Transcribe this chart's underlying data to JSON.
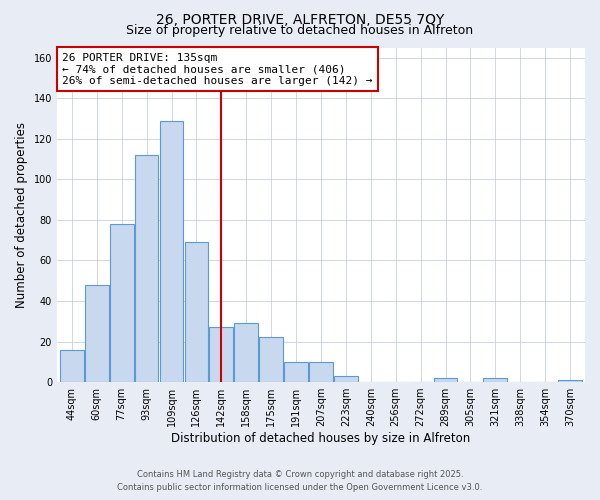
{
  "title": "26, PORTER DRIVE, ALFRETON, DE55 7QY",
  "subtitle": "Size of property relative to detached houses in Alfreton",
  "xlabel": "Distribution of detached houses by size in Alfreton",
  "ylabel": "Number of detached properties",
  "bar_labels": [
    "44sqm",
    "60sqm",
    "77sqm",
    "93sqm",
    "109sqm",
    "126sqm",
    "142sqm",
    "158sqm",
    "175sqm",
    "191sqm",
    "207sqm",
    "223sqm",
    "240sqm",
    "256sqm",
    "272sqm",
    "289sqm",
    "305sqm",
    "321sqm",
    "338sqm",
    "354sqm",
    "370sqm"
  ],
  "bar_values": [
    16,
    48,
    78,
    112,
    129,
    69,
    27,
    29,
    22,
    10,
    10,
    3,
    0,
    0,
    0,
    2,
    0,
    2,
    0,
    0,
    1
  ],
  "bar_color": "#c8d8ee",
  "bar_edge_color": "#5b9bd5",
  "vline_x": 6.0,
  "vline_color": "#cc0000",
  "annotation_line1": "26 PORTER DRIVE: 135sqm",
  "annotation_line2": "← 74% of detached houses are smaller (406)",
  "annotation_line3": "26% of semi-detached houses are larger (142) →",
  "annotation_box_color": "#ffffff",
  "annotation_box_edge": "#cc0000",
  "ylim": [
    0,
    165
  ],
  "yticks": [
    0,
    20,
    40,
    60,
    80,
    100,
    120,
    140,
    160
  ],
  "footer_line1": "Contains HM Land Registry data © Crown copyright and database right 2025.",
  "footer_line2": "Contains public sector information licensed under the Open Government Licence v3.0.",
  "bg_color": "#e8ecf5",
  "plot_bg_color": "#ffffff",
  "grid_color": "#c8d0e0",
  "title_fontsize": 10,
  "subtitle_fontsize": 9,
  "tick_fontsize": 7,
  "label_fontsize": 8.5,
  "annot_fontsize": 8
}
